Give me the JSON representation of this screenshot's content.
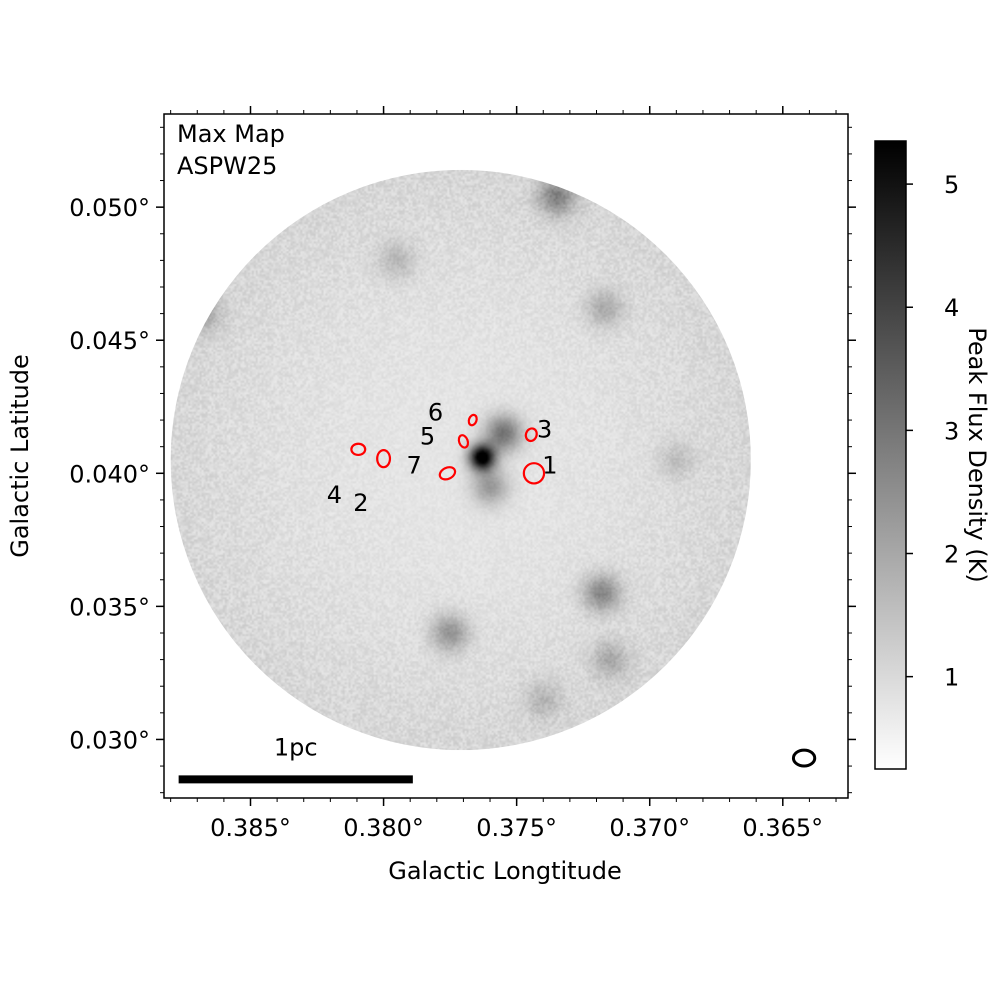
{
  "chart_data": {
    "type": "heatmap",
    "title_lines": [
      "Max Map",
      "ASPW25"
    ],
    "xlabel": "Galactic Longtitude",
    "ylabel": "Galactic Latitude",
    "x_axis_reversed": true,
    "xlim": [
      0.38825,
      0.36255
    ],
    "ylim": [
      0.0278,
      0.0535
    ],
    "xticks": [
      {
        "value": 0.385,
        "label": "0.385°"
      },
      {
        "value": 0.38,
        "label": "0.380°"
      },
      {
        "value": 0.375,
        "label": "0.375°"
      },
      {
        "value": 0.37,
        "label": "0.370°"
      },
      {
        "value": 0.365,
        "label": "0.365°"
      }
    ],
    "yticks": [
      {
        "value": 0.03,
        "label": "0.030°"
      },
      {
        "value": 0.035,
        "label": "0.035°"
      },
      {
        "value": 0.04,
        "label": "0.040°"
      },
      {
        "value": 0.045,
        "label": "0.045°"
      },
      {
        "value": 0.05,
        "label": "0.050°"
      }
    ],
    "map_disk": {
      "center_l": 0.3771,
      "center_b": 0.0405,
      "radius_deg": 0.0109
    },
    "emission_peaks": [
      {
        "l": 0.3763,
        "b": 0.0406,
        "amp": 1.0
      },
      {
        "l": 0.3755,
        "b": 0.0415,
        "amp": 0.45
      },
      {
        "l": 0.376,
        "b": 0.0395,
        "amp": 0.3
      },
      {
        "l": 0.3735,
        "b": 0.0504,
        "amp": 0.35
      },
      {
        "l": 0.3718,
        "b": 0.0355,
        "amp": 0.35
      },
      {
        "l": 0.3775,
        "b": 0.034,
        "amp": 0.3
      },
      {
        "l": 0.3868,
        "b": 0.046,
        "amp": 0.2
      },
      {
        "l": 0.3717,
        "b": 0.0462,
        "amp": 0.2
      },
      {
        "l": 0.3795,
        "b": 0.048,
        "amp": 0.15
      },
      {
        "l": 0.3715,
        "b": 0.033,
        "amp": 0.2
      },
      {
        "l": 0.374,
        "b": 0.0315,
        "amp": 0.15
      },
      {
        "l": 0.369,
        "b": 0.0405,
        "amp": 0.12
      }
    ],
    "sources": [
      {
        "id": "1",
        "l": 0.37435,
        "b": 0.04,
        "dl": 0.00038,
        "db": 0.00038,
        "angle": 0
      },
      {
        "id": "2",
        "l": 0.38,
        "b": 0.04055,
        "dl": 0.00024,
        "db": 0.00032,
        "angle": 0
      },
      {
        "id": "3",
        "l": 0.37445,
        "b": 0.04145,
        "dl": 0.0002,
        "db": 0.00024,
        "angle": 20
      },
      {
        "id": "4",
        "l": 0.38095,
        "b": 0.0409,
        "dl": 0.00026,
        "db": 0.00021,
        "angle": 0
      },
      {
        "id": "5",
        "l": 0.377,
        "b": 0.0412,
        "dl": 0.00016,
        "db": 0.00024,
        "angle": -20
      },
      {
        "id": "6",
        "l": 0.37665,
        "b": 0.042,
        "dl": 0.00014,
        "db": 0.0002,
        "angle": 20
      },
      {
        "id": "7",
        "l": 0.3776,
        "b": 0.04,
        "dl": 0.0003,
        "db": 0.00021,
        "angle": -25
      }
    ],
    "source_labels": [
      {
        "id": "1",
        "text": "1",
        "l": 0.37375,
        "b": 0.04025
      },
      {
        "id": "2",
        "text": "2",
        "l": 0.38085,
        "b": 0.03885
      },
      {
        "id": "3",
        "text": "3",
        "l": 0.37395,
        "b": 0.0416
      },
      {
        "id": "4",
        "text": "4",
        "l": 0.38185,
        "b": 0.03915
      },
      {
        "id": "5",
        "text": "5",
        "l": 0.37835,
        "b": 0.04135
      },
      {
        "id": "6",
        "text": "6",
        "l": 0.37805,
        "b": 0.04225
      },
      {
        "id": "7",
        "text": "7",
        "l": 0.37885,
        "b": 0.04025
      }
    ],
    "beam": {
      "l": 0.3642,
      "b": 0.0293,
      "dl": 0.0004,
      "db": 0.0003
    },
    "scalebar": {
      "label": "1pc",
      "l_start": 0.3877,
      "l_end": 0.3789,
      "b": 0.0285
    },
    "colorbar": {
      "label": "Peak Flux Density (K)",
      "vmin": 0.25,
      "vmax": 5.35,
      "ticks": [
        1,
        2,
        3,
        4,
        5
      ],
      "cmap": "gray_r"
    }
  }
}
